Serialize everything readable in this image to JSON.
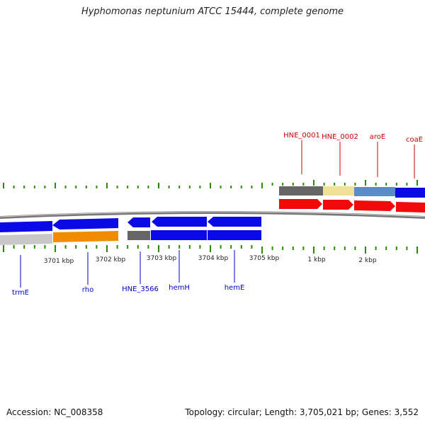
{
  "title": "Hyphomonas neptunium ATCC 15444, complete genome",
  "footer": {
    "accession": "Accession: NC_008358",
    "summary": "Topology: circular; Length: 3,705,021 bp; Genes: 3,552"
  },
  "tick_labels": [
    "3701 kbp",
    "3702 kbp",
    "3703 kbp",
    "3704 kbp",
    "3705 kbp",
    "1 kbp",
    "2 kbp"
  ],
  "top_gene_labels": [
    "HNE_0001",
    "HNE_0002",
    "aroE",
    "coaE"
  ],
  "bottom_gene_labels": [
    "trmE",
    "rho",
    "HNE_3566",
    "hemH",
    "hemE"
  ],
  "colors": {
    "top_label": "#cc0000",
    "bottom_label": "#0000cc",
    "tick": "#2a8a00",
    "backbone": "#888888",
    "gene_blue": "#0a0ae6",
    "gene_red": "#f00a0a",
    "gene_gray": "#666666",
    "gene_light_gray": "#c8c8c8",
    "gene_orange": "#f08c00",
    "gene_yellow": "#f0e096",
    "gene_steel": "#5a8cc8"
  }
}
